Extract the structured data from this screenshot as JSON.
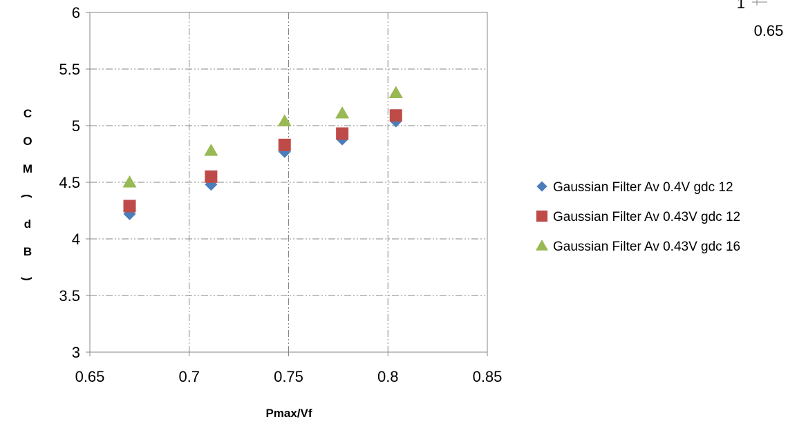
{
  "chart_data": {
    "type": "scatter",
    "title": "",
    "xlabel": "Pmax/Vf",
    "ylabel": "COM(dB)",
    "xlim": [
      0.65,
      0.85
    ],
    "ylim": [
      3,
      6
    ],
    "x_ticks": [
      "0.65",
      "0.7",
      "0.75",
      "0.8",
      "0.85"
    ],
    "y_ticks": [
      "3",
      "3.5",
      "4",
      "4.5",
      "5",
      "5.5",
      "6"
    ],
    "grid": true,
    "legend_position": "right",
    "series": [
      {
        "name": "Gaussian Filter Av 0.4V gdc 12",
        "marker": "diamond",
        "color": "#4a7ebb",
        "x": [
          0.67,
          0.711,
          0.748,
          0.777,
          0.804
        ],
        "y": [
          4.22,
          4.48,
          4.77,
          4.88,
          5.04
        ]
      },
      {
        "name": "Gaussian Filter Av 0.43V gdc 12",
        "marker": "square",
        "color": "#be4b48",
        "x": [
          0.67,
          0.711,
          0.748,
          0.777,
          0.804
        ],
        "y": [
          4.29,
          4.55,
          4.83,
          4.93,
          5.09
        ]
      },
      {
        "name": "Gaussian Filter Av 0.43V gdc 16",
        "marker": "triangle",
        "color": "#98b954",
        "x": [
          0.67,
          0.711,
          0.748,
          0.777,
          0.804
        ],
        "y": [
          4.5,
          4.78,
          5.04,
          5.11,
          5.29
        ]
      }
    ]
  },
  "corner_fragment": {
    "tick_y": "1",
    "tick_x": "0.65"
  }
}
